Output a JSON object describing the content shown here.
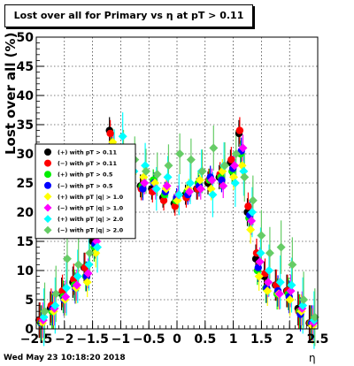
{
  "title": "Lost over all for Primary vs   η at pT > 0.11",
  "timestamp": "Wed May 23 10:18:20 2018",
  "chart_data": {
    "type": "scatter",
    "title": "Lost over all for Primary vs   η at pT > 0.11",
    "xlabel": "η",
    "ylabel": "Lost over all (%)",
    "xlim": [
      -2.5,
      2.5
    ],
    "ylim": [
      0,
      50
    ],
    "grid": true,
    "legend_position": "center-left",
    "x_ticks": [
      "−2.5",
      "−2",
      "−1.5",
      "−1",
      "−0.5",
      "0",
      "0.5",
      "1",
      "1.5",
      "2",
      "2.5"
    ],
    "y_ticks": [
      "0",
      "5",
      "10",
      "15",
      "20",
      "25",
      "30",
      "35",
      "40",
      "45",
      "50"
    ],
    "series": [
      {
        "name": "(+) with pT > 0.11",
        "color": "#000000",
        "x": [
          -2.4,
          -2.2,
          -2.0,
          -1.8,
          -1.6,
          -1.45,
          -1.3,
          -1.15,
          -1.0,
          -0.8,
          -0.6,
          -0.4,
          -0.2,
          0.0,
          0.2,
          0.4,
          0.6,
          0.8,
          1.0,
          1.15,
          1.3,
          1.45,
          1.6,
          1.8,
          2.0,
          2.2,
          2.4
        ],
        "y": [
          1.5,
          3.5,
          6.0,
          8.0,
          10.5,
          15.0,
          26.0,
          34.0,
          28.0,
          25.5,
          24.5,
          24.0,
          22.5,
          21.5,
          23.0,
          24.0,
          25.0,
          26.0,
          28.5,
          33.5,
          20.0,
          12.0,
          9.0,
          7.5,
          6.5,
          3.5,
          1.0
        ]
      },
      {
        "name": "(−) with pT > 0.11",
        "color": "#ff0000",
        "x": [
          -2.4,
          -2.2,
          -2.0,
          -1.8,
          -1.6,
          -1.45,
          -1.3,
          -1.15,
          -1.0,
          -0.8,
          -0.6,
          -0.4,
          -0.2,
          0.0,
          0.2,
          0.4,
          0.6,
          0.8,
          1.0,
          1.15,
          1.3,
          1.45,
          1.6,
          1.8,
          2.0,
          2.2,
          2.4
        ],
        "y": [
          1.5,
          4.0,
          6.5,
          8.5,
          10.5,
          16.0,
          27.0,
          33.5,
          27.5,
          25.0,
          24.0,
          23.5,
          22.0,
          21.0,
          22.5,
          24.0,
          25.5,
          26.5,
          29.0,
          34.0,
          21.0,
          13.0,
          9.5,
          7.5,
          6.5,
          3.0,
          1.0
        ]
      },
      {
        "name": "(+) with pT > 0.5",
        "color": "#00ee00",
        "x": [
          -2.4,
          -2.2,
          -2.0,
          -1.8,
          -1.6,
          -1.45,
          -1.3,
          -1.15,
          -1.0,
          -0.8,
          -0.6,
          -0.4,
          -0.2,
          0.0,
          0.2,
          0.4,
          0.6,
          0.8,
          1.0,
          1.15,
          1.3,
          1.45,
          1.6,
          1.8,
          2.0,
          2.2,
          2.4
        ],
        "y": [
          1.0,
          3.0,
          5.5,
          7.5,
          9.0,
          14.0,
          25.0,
          31.0,
          28.5,
          26.0,
          24.5,
          25.5,
          23.0,
          22.0,
          23.5,
          25.0,
          25.5,
          26.0,
          27.0,
          30.0,
          19.0,
          10.0,
          7.0,
          6.0,
          6.0,
          3.0,
          1.0
        ]
      },
      {
        "name": "(−) with pT > 0.5",
        "color": "#0000ff",
        "x": [
          -2.4,
          -2.2,
          -2.0,
          -1.8,
          -1.6,
          -1.45,
          -1.3,
          -1.15,
          -1.0,
          -0.8,
          -0.6,
          -0.4,
          -0.2,
          0.0,
          0.2,
          0.4,
          0.6,
          0.8,
          1.0,
          1.15,
          1.3,
          1.45,
          1.6,
          1.8,
          2.0,
          2.2,
          2.4
        ],
        "y": [
          1.0,
          3.5,
          5.0,
          7.0,
          9.0,
          14.5,
          25.0,
          31.5,
          28.0,
          25.5,
          24.0,
          25.0,
          23.5,
          22.5,
          23.0,
          24.5,
          26.0,
          25.5,
          27.5,
          30.5,
          19.5,
          10.5,
          7.0,
          6.5,
          5.5,
          2.5,
          1.0
        ]
      },
      {
        "name": "(+) with pT |q| > 1.0",
        "color": "#ffff00",
        "x": [
          -2.4,
          -2.2,
          -2.0,
          -1.8,
          -1.6,
          -1.45,
          -1.3,
          -1.15,
          -1.0,
          -0.8,
          -0.6,
          -0.4,
          -0.2,
          0.0,
          0.2,
          0.4,
          0.6,
          0.8,
          1.0,
          1.15,
          1.3,
          1.45,
          1.6,
          1.8,
          2.0,
          2.2,
          2.4
        ],
        "y": [
          1.0,
          3.0,
          5.0,
          7.0,
          8.0,
          13.0,
          24.0,
          32.0,
          29.0,
          26.5,
          26.0,
          25.0,
          24.0,
          22.0,
          24.0,
          25.5,
          24.0,
          27.0,
          26.0,
          28.0,
          17.0,
          9.0,
          6.5,
          6.0,
          5.0,
          3.0,
          0.5
        ]
      },
      {
        "name": "(−) with pT |q| > 1.0",
        "color": "#ff00ff",
        "x": [
          -2.4,
          -2.2,
          -2.0,
          -1.8,
          -1.6,
          -1.45,
          -1.3,
          -1.15,
          -1.0,
          -0.8,
          -0.6,
          -0.4,
          -0.2,
          0.0,
          0.2,
          0.4,
          0.6,
          0.8,
          1.0,
          1.15,
          1.3,
          1.45,
          1.6,
          1.8,
          2.0,
          2.2,
          2.4
        ],
        "y": [
          1.5,
          3.5,
          5.5,
          7.5,
          9.5,
          15.0,
          26.0,
          31.0,
          27.0,
          27.0,
          25.0,
          24.0,
          24.5,
          23.0,
          23.5,
          24.0,
          25.5,
          24.5,
          28.0,
          31.0,
          18.5,
          11.5,
          8.0,
          6.0,
          6.5,
          3.5,
          1.0
        ]
      },
      {
        "name": "(+) with pT |q| > 2.0",
        "color": "#00ffff",
        "x": [
          -2.4,
          -2.2,
          -2.0,
          -1.8,
          -1.6,
          -1.45,
          -1.3,
          -1.15,
          -1.0,
          -0.8,
          -0.6,
          -0.4,
          -0.2,
          0.0,
          0.2,
          0.4,
          0.6,
          0.8,
          1.0,
          1.15,
          1.3,
          1.45,
          1.6,
          1.8,
          2.0,
          2.2,
          2.4
        ],
        "y": [
          2.0,
          4.0,
          7.0,
          9.0,
          11.0,
          14.0,
          22.0,
          30.0,
          33.0,
          27.0,
          28.0,
          24.0,
          26.0,
          23.0,
          25.0,
          27.0,
          23.0,
          28.0,
          25.0,
          27.0,
          20.0,
          13.0,
          10.0,
          8.0,
          7.5,
          4.0,
          1.5
        ]
      },
      {
        "name": "(−) with pT |q| > 2.0",
        "color": "#66cc66",
        "x": [
          -2.4,
          -2.2,
          -2.0,
          -1.8,
          -1.6,
          -1.45,
          -1.3,
          -1.15,
          -1.0,
          -0.8,
          -0.6,
          -0.4,
          -0.2,
          0.0,
          0.2,
          0.4,
          0.6,
          0.8,
          1.0,
          1.15,
          1.3,
          1.45,
          1.6,
          1.8,
          2.0,
          2.2,
          2.4
        ],
        "y": [
          3.0,
          6.0,
          12.0,
          11.0,
          13.0,
          17.0,
          27.0,
          28.0,
          30.0,
          29.0,
          27.0,
          26.5,
          28.0,
          30.0,
          29.0,
          27.0,
          31.0,
          28.0,
          30.0,
          26.0,
          22.0,
          16.0,
          13.0,
          14.0,
          11.0,
          5.0,
          2.0
        ]
      }
    ]
  }
}
